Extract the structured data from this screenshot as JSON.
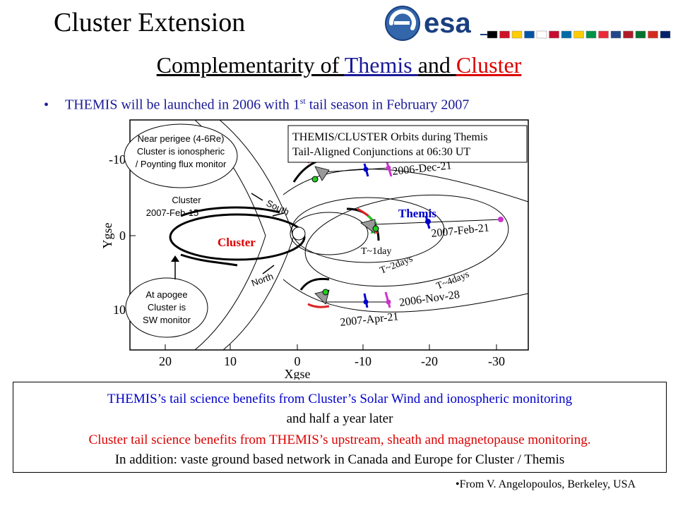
{
  "title": "Cluster Extension",
  "logo": {
    "text": "esa",
    "flag_colors": [
      "#000000",
      "#ce1126",
      "#ffce00",
      "#0055a4",
      "#ffffff",
      "#c60c30",
      "#006aa7",
      "#fecc00",
      "#009246",
      "#ed2939",
      "#21468b",
      "#ae1c28",
      "#00732f",
      "#d52b1e",
      "#012169"
    ]
  },
  "subtitle": {
    "part1": "Complementarity of ",
    "themis": "Themis ",
    "part2": "and ",
    "cluster": "Cluster"
  },
  "bullet": {
    "before": "THEMIS will be launched in 2006 with 1",
    "sup": "st",
    "after": " tail season in February 2007"
  },
  "diagram": {
    "x_axis_label": "Xgse",
    "y_axis_label": "Ygse",
    "x_ticks": [
      "20",
      "10",
      "0",
      "-10",
      "-20",
      "-30"
    ],
    "y_ticks": [
      "-10",
      "0",
      "10"
    ],
    "header_box": [
      "THEMIS/CLUSTER Orbits during Themis",
      "Tail-Aligned Conjunctions at 06:30 UT"
    ],
    "callout_top": [
      "Near perigee (4-6Re)",
      "Cluster is ionospheric",
      "/ Poynting flux monitor"
    ],
    "callout_bottom": [
      "At apogee",
      "Cluster is",
      "SW monitor"
    ],
    "cluster_date_label": [
      "Cluster",
      "2007-Feb-15"
    ],
    "south_label": "South",
    "north_label": "North",
    "cluster_label": "Cluster",
    "themis_label": "Themis",
    "dates": [
      "2006-Dec-21",
      "2007-Feb-21",
      "2006-Nov-28",
      "2007-Apr-21"
    ],
    "period_labels": [
      "T~1day",
      "T~2days",
      "T~4days"
    ],
    "colors": {
      "themis": "#0000cc",
      "cluster": "#cc0000",
      "green": "#22cc22",
      "magenta": "#cc33cc",
      "red_arc": "#dd2222"
    }
  },
  "textbox": {
    "line1": "THEMIS’s tail science benefits from Cluster’s Solar Wind and ionospheric monitoring",
    "line2": "and half a year later",
    "line3": "Cluster tail science benefits from THEMIS’s upstream, sheath and magnetopause monitoring.",
    "line4": "In addition: vaste ground based network in Canada and Europe for Cluster / Themis",
    "colors": {
      "blue": "#0000cc",
      "red": "#dd0000",
      "black": "#000000"
    }
  },
  "credit": "•From V. Angelopoulos, Berkeley, USA"
}
